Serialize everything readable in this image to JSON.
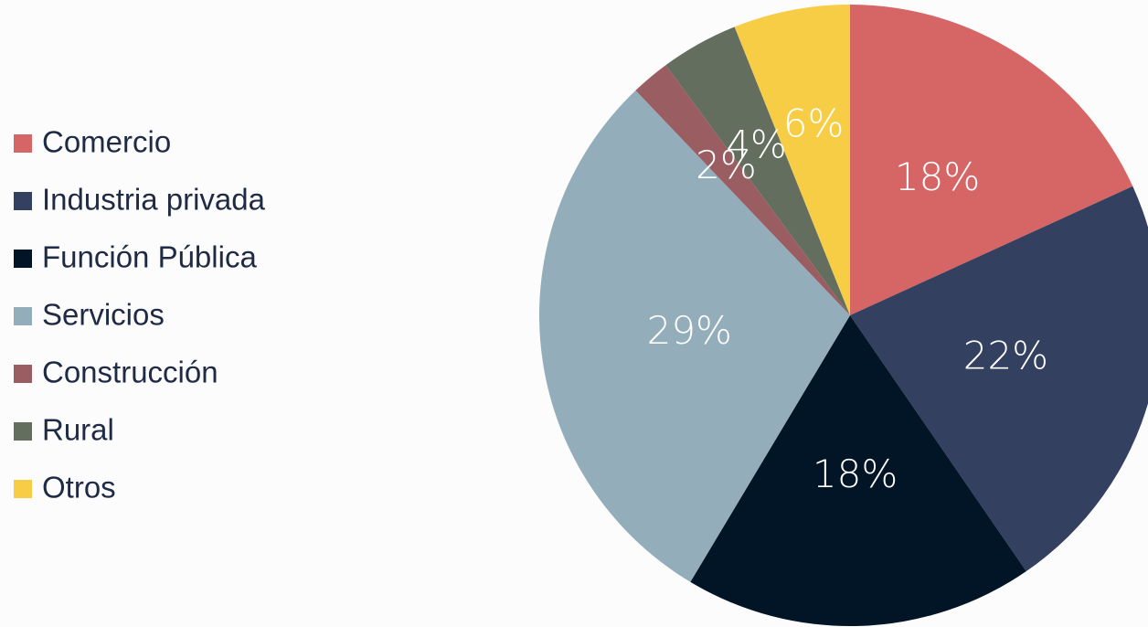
{
  "chart_data": {
    "type": "pie",
    "categories": [
      "Comercio",
      "Industria privada",
      "Función Pública",
      "Servicios",
      "Construcción",
      "Rural",
      "Otros"
    ],
    "values": [
      18,
      22,
      18,
      29,
      2,
      4,
      6
    ],
    "value_labels": [
      "18%",
      "22%",
      "18%",
      "29%",
      "2%",
      "4%",
      "6%"
    ],
    "colors": [
      "#d66565",
      "#334060",
      "#021526",
      "#93adbb",
      "#9a5e62",
      "#636e5e",
      "#f6cd44"
    ],
    "legend": "left"
  }
}
